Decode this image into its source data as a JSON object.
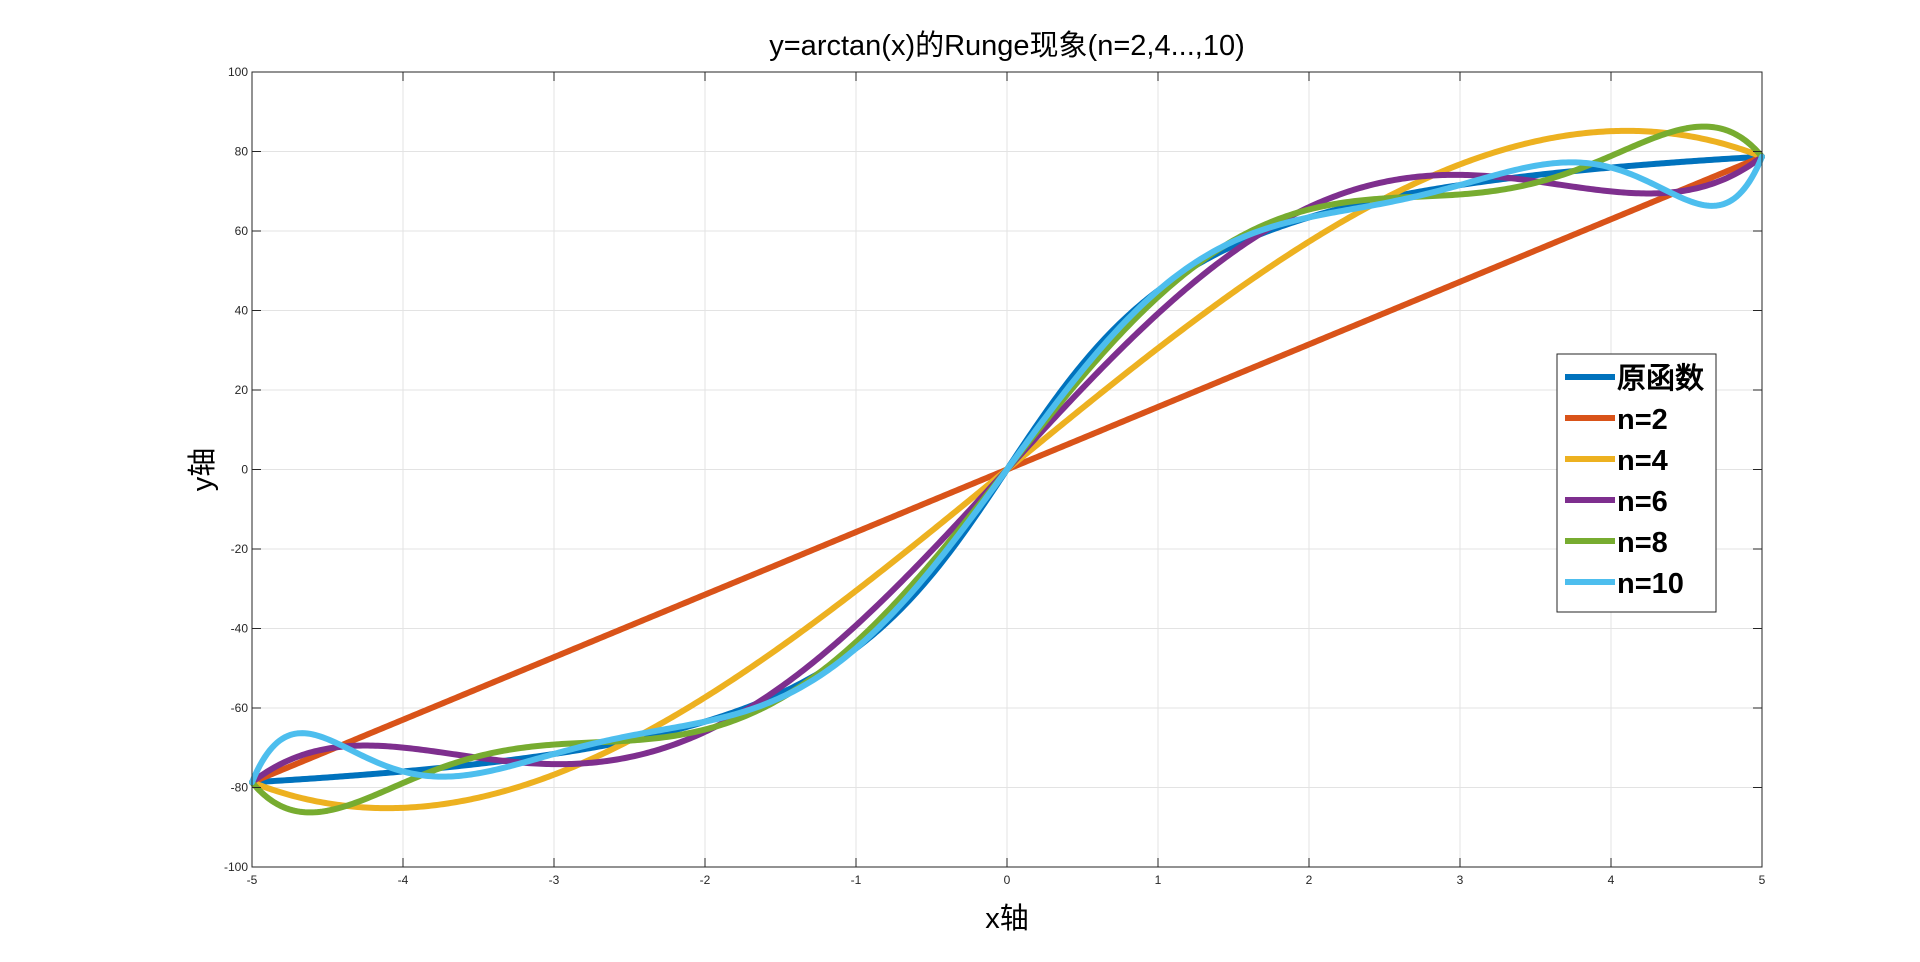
{
  "chart_data": {
    "type": "line",
    "title": "y=arctan(x)的Runge现象(n=2,4...,10)",
    "xlabel": "x轴",
    "ylabel": "y轴",
    "xlim": [
      -5,
      5
    ],
    "ylim": [
      -100,
      100
    ],
    "xticks": [
      -5,
      -4,
      -3,
      -2,
      -1,
      0,
      1,
      2,
      3,
      4,
      5
    ],
    "yticks": [
      -100,
      -80,
      -60,
      -40,
      -20,
      0,
      20,
      40,
      60,
      80,
      100
    ],
    "x_tick_labels": [
      "-5",
      "-4",
      "-3",
      "-2",
      "-1",
      "0",
      "1",
      "2",
      "3",
      "4",
      "5"
    ],
    "y_tick_labels": [
      "-100",
      "-80",
      "-60",
      "-40",
      "-20",
      "0",
      "20",
      "40",
      "60",
      "80",
      "100"
    ],
    "grid": true,
    "legend_position": "right",
    "series": [
      {
        "name": "原函数",
        "color": "#0072BD",
        "kind": "function",
        "nodes": null
      },
      {
        "name": "n=2",
        "color": "#D95319",
        "kind": "interpolation",
        "nodes": 2
      },
      {
        "name": "n=4",
        "color": "#EDB120",
        "kind": "interpolation",
        "nodes": 4
      },
      {
        "name": "n=6",
        "color": "#7E2F8E",
        "kind": "interpolation",
        "nodes": 6
      },
      {
        "name": "n=8",
        "color": "#77AC30",
        "kind": "interpolation",
        "nodes": 8
      },
      {
        "name": "n=10",
        "color": "#4DBEEE",
        "kind": "interpolation",
        "nodes": 10
      }
    ]
  }
}
